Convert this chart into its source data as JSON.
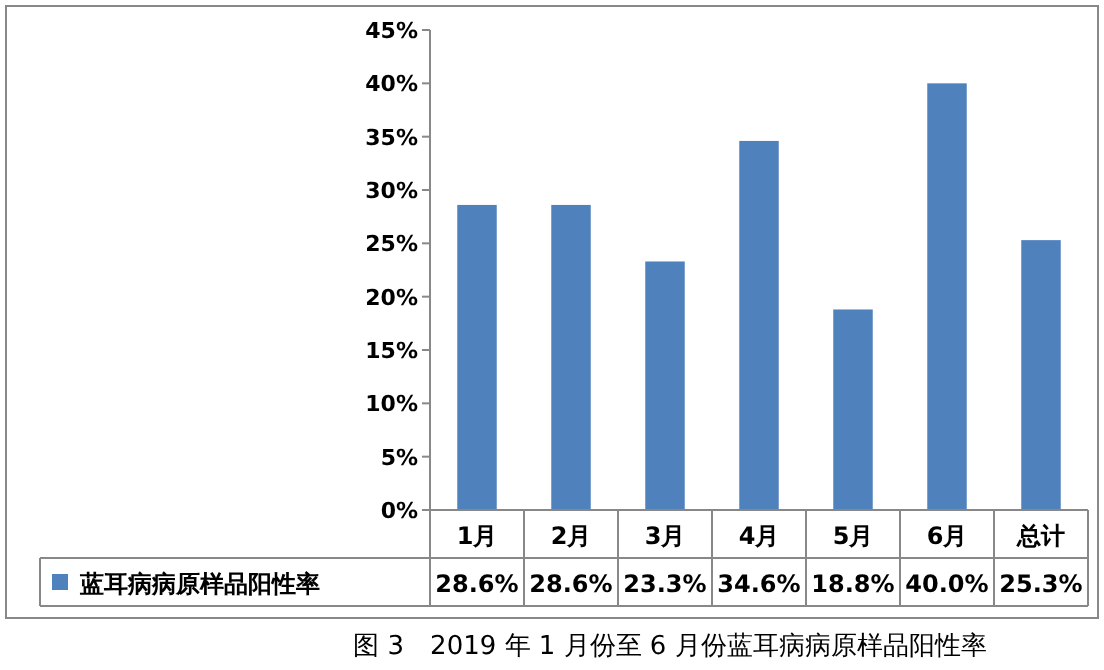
{
  "chart_data": {
    "type": "bar",
    "categories": [
      "1月",
      "2月",
      "3月",
      "4月",
      "5月",
      "6月",
      "总计"
    ],
    "series": [
      {
        "name": "蓝耳病病原样品阳性率",
        "color": "#4f81bd",
        "values": [
          28.6,
          28.6,
          23.3,
          34.6,
          18.8,
          40.0,
          25.3
        ],
        "value_labels": [
          "28.6%",
          "28.6%",
          "23.3%",
          "34.6%",
          "18.8%",
          "40.0%",
          "25.3%"
        ]
      }
    ],
    "ylim": [
      0,
      45
    ],
    "yticks": [
      {
        "value": 0,
        "label": "0%"
      },
      {
        "value": 5,
        "label": "5%"
      },
      {
        "value": 10,
        "label": "10%"
      },
      {
        "value": 15,
        "label": "15%"
      },
      {
        "value": 20,
        "label": "20%"
      },
      {
        "value": 25,
        "label": "25%"
      },
      {
        "value": 30,
        "label": "30%"
      },
      {
        "value": 35,
        "label": "35%"
      },
      {
        "value": 40,
        "label": "40%"
      },
      {
        "value": 45,
        "label": "45%"
      }
    ],
    "grid": false,
    "legend": "bottom left",
    "annotations": [
      "图 3　2019 年 1 月份至 6 月份蓝耳病病原样品阳性率"
    ]
  }
}
